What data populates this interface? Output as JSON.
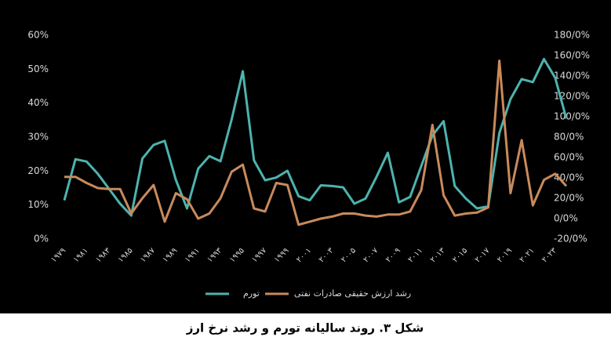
{
  "chart_data": {
    "type": "line",
    "title": "شکل ۳. روند سالیانه تورم و رشد نرخ ارز",
    "categories": [
      "۱۹۷۹",
      null,
      "۱۹۸۱",
      null,
      "۱۹۸۳",
      null,
      "۱۹۸۵",
      null,
      "۱۹۸۷",
      null,
      "۱۹۸۹",
      null,
      "۱۹۹۱",
      null,
      "۱۹۹۳",
      null,
      "۱۹۹۵",
      null,
      "۱۹۹۷",
      null,
      "۱۹۹۹",
      null,
      "۲۰۰۱",
      null,
      "۲۰۰۳",
      null,
      "۲۰۰۵",
      null,
      "۲۰۰۷",
      null,
      "۲۰۰۹",
      null,
      "۲۰۱۱",
      null,
      "۲۰۱۳",
      null,
      "۲۰۱۵",
      null,
      "۲۰۱۷",
      null,
      "۲۰۱۹",
      null,
      "۲۰۲۱",
      null,
      "۲۰۲۳",
      null
    ],
    "series": [
      {
        "name": "تورم",
        "color": "#4db3ae",
        "axis": "y",
        "values": [
          11.4,
          23.5,
          22.8,
          19.2,
          14.8,
          10.4,
          6.9,
          23.7,
          27.7,
          28.9,
          17.4,
          9.0,
          20.7,
          24.4,
          22.9,
          35.2,
          49.4,
          23.2,
          17.3,
          18.1,
          20.1,
          12.6,
          11.4,
          15.8,
          15.6,
          15.2,
          10.4,
          11.9,
          18.4,
          25.4,
          10.8,
          12.4,
          21.5,
          30.5,
          34.7,
          15.6,
          11.9,
          9.0,
          9.6,
          31.2,
          41.2,
          47.1,
          46.2,
          53.0,
          47.5,
          35.5
        ]
      },
      {
        "name": "رشد ارزش حقیقی صادرات نفتی",
        "color": "#c98a5b",
        "axis": "y2",
        "values": [
          41,
          41,
          35,
          30,
          29,
          29,
          5,
          20,
          33,
          -3,
          25,
          19,
          0,
          5,
          20,
          46,
          53,
          10,
          7,
          35,
          33,
          -6,
          -3,
          0,
          2,
          5,
          5,
          3,
          2,
          4,
          4,
          7,
          28,
          92,
          23,
          3,
          5,
          6,
          11,
          155,
          25,
          77,
          13,
          38,
          44,
          32
        ]
      }
    ],
    "ylim": [
      0,
      60
    ],
    "yticks": [
      {
        "value": 0,
        "label": "0%"
      },
      {
        "value": 10,
        "label": "10%"
      },
      {
        "value": 20,
        "label": "20%"
      },
      {
        "value": 30,
        "label": "30%"
      },
      {
        "value": 40,
        "label": "40%"
      },
      {
        "value": 50,
        "label": "50%"
      },
      {
        "value": 60,
        "label": "60%"
      }
    ],
    "y2lim": [
      -20,
      180
    ],
    "y2ticks": [
      {
        "value": -20,
        "label": "-20/0%"
      },
      {
        "value": 0,
        "label": "0/0%"
      },
      {
        "value": 20,
        "label": "20/0%"
      },
      {
        "value": 40,
        "label": "40/0%"
      },
      {
        "value": 60,
        "label": "60/0%"
      },
      {
        "value": 80,
        "label": "80/0%"
      },
      {
        "value": 100,
        "label": "100/0%"
      },
      {
        "value": 120,
        "label": "120/0%"
      },
      {
        "value": 140,
        "label": "140/0%"
      },
      {
        "value": 160,
        "label": "160/0%"
      },
      {
        "value": 180,
        "label": "180/0%"
      }
    ],
    "grid": false,
    "legend": "bottom"
  }
}
